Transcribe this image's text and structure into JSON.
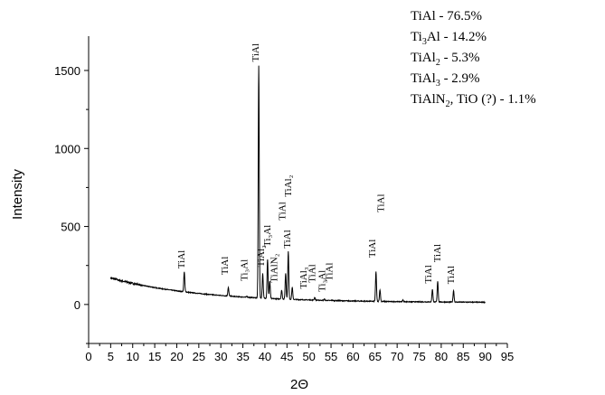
{
  "chart_data": {
    "type": "line",
    "title": "",
    "xlabel": "2Θ",
    "ylabel": "Intensity",
    "xlim": [
      0,
      95
    ],
    "ylim": [
      -250,
      1720
    ],
    "x_ticks": [
      0,
      5,
      10,
      15,
      20,
      25,
      30,
      35,
      40,
      45,
      50,
      55,
      60,
      65,
      70,
      75,
      80,
      85,
      90,
      95
    ],
    "y_ticks": [
      0,
      500,
      1000,
      1500
    ],
    "grid": false,
    "series": [
      {
        "color": "#000000",
        "baseline_start": [
          5,
          170
        ],
        "baseline_end": [
          90,
          12
        ],
        "x_range": [
          5,
          90
        ],
        "peaks": [
          {
            "x": 21.7,
            "y": 210
          },
          {
            "x": 31.7,
            "y": 108
          },
          {
            "x": 35.9,
            "y": 52
          },
          {
            "x": 38.6,
            "y": 1530
          },
          {
            "x": 39.5,
            "y": 200
          },
          {
            "x": 40.6,
            "y": 290
          },
          {
            "x": 41.1,
            "y": 150
          },
          {
            "x": 43.8,
            "y": 92
          },
          {
            "x": 44.7,
            "y": 200
          },
          {
            "x": 45.3,
            "y": 340
          },
          {
            "x": 46.2,
            "y": 110
          },
          {
            "x": 51.3,
            "y": 45
          },
          {
            "x": 53.5,
            "y": 35
          },
          {
            "x": 55.2,
            "y": 28
          },
          {
            "x": 65.2,
            "y": 210
          },
          {
            "x": 66.1,
            "y": 95
          },
          {
            "x": 71.3,
            "y": 28
          },
          {
            "x": 78.0,
            "y": 98
          },
          {
            "x": 79.2,
            "y": 150
          },
          {
            "x": 82.8,
            "y": 90
          }
        ]
      }
    ],
    "peak_labels": [
      {
        "text": "TiAl",
        "x": 21.7,
        "y": 230
      },
      {
        "text": "TiAl",
        "x": 31.6,
        "y": 190
      },
      {
        "text": "Ti₃Al",
        "x": 36.0,
        "y": 150
      },
      {
        "text": "TiAl",
        "x": 38.6,
        "y": 1555
      },
      {
        "text": "TiAl₂",
        "x": 39.8,
        "y": 240
      },
      {
        "text": "Ti₃Al",
        "x": 41.2,
        "y": 370
      },
      {
        "text": "TiAlN₂",
        "x": 42.8,
        "y": 140
      },
      {
        "text": "TiAl",
        "x": 44.6,
        "y": 540
      },
      {
        "text": "TiAl₂",
        "x": 46.0,
        "y": 690
      },
      {
        "text": "TiAl",
        "x": 45.8,
        "y": 360
      },
      {
        "text": "TiAl₃",
        "x": 49.5,
        "y": 100
      },
      {
        "text": "TiAl",
        "x": 51.4,
        "y": 140
      },
      {
        "text": "Ti₃Al",
        "x": 53.7,
        "y": 80
      },
      {
        "text": "TiAl",
        "x": 55.3,
        "y": 150
      },
      {
        "text": "TiAl",
        "x": 65.0,
        "y": 300
      },
      {
        "text": "TiAl",
        "x": 67.0,
        "y": 590
      },
      {
        "text": "TiAl",
        "x": 77.8,
        "y": 135
      },
      {
        "text": "TiAl",
        "x": 79.8,
        "y": 270
      },
      {
        "text": "TiAl",
        "x": 82.9,
        "y": 130
      }
    ],
    "composition_legend": [
      {
        "base": "TiAl - 76.5%",
        "sub": "",
        "rest": ""
      },
      {
        "base": "Ti",
        "sub": "3",
        "rest": "Al - 14.2%"
      },
      {
        "base": "TiAl",
        "sub": "2",
        "rest": " - 5.3%"
      },
      {
        "base": "TiAl",
        "sub": "3",
        "rest": " - 2.9%"
      },
      {
        "base": "TiAlN",
        "sub": "2",
        "rest": ", TiO (?) - 1.1%"
      }
    ]
  }
}
